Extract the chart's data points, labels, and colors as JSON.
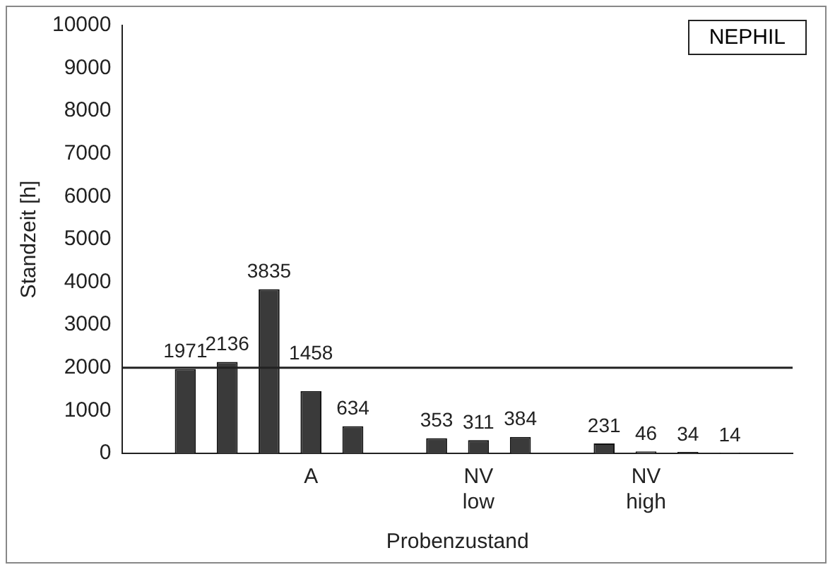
{
  "chart_data": {
    "type": "bar",
    "xlabel": "Probenzustand",
    "ylabel": "Standzeit [h]",
    "categories": [
      null,
      null,
      null,
      null,
      "A",
      null,
      null,
      null,
      "NV low",
      null,
      null,
      null,
      "NV high",
      null,
      null,
      null
    ],
    "values": [
      null,
      1971,
      2136,
      3835,
      1458,
      634,
      null,
      353,
      311,
      384,
      null,
      231,
      46,
      34,
      14,
      null
    ],
    "color": "#3a3a3a",
    "ylim": [
      0,
      10000
    ],
    "yticks": [
      0,
      1000,
      2000,
      3000,
      4000,
      5000,
      6000,
      7000,
      8000,
      9000,
      10000
    ],
    "grid": false,
    "legend": false,
    "data_labels": true,
    "ref_lines": [
      {
        "axis": "y",
        "value": 2000,
        "color": "#222222"
      }
    ],
    "annotations": [
      "NEPHIL"
    ]
  }
}
